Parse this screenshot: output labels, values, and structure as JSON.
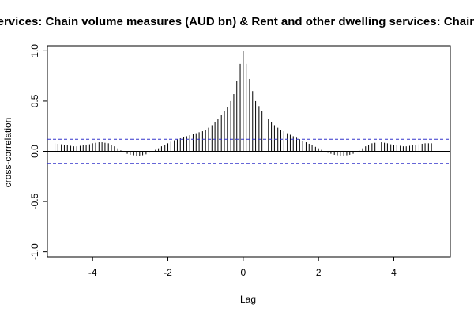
{
  "chart_data": {
    "type": "bar",
    "title": "ing services: Chain volume measures (AUD bn) & Rent and other dwelling services: Chain volu",
    "xlabel": "Lag",
    "ylabel": "cross-correlation",
    "xlim": [
      -5.2,
      5.5
    ],
    "ylim": [
      -1.05,
      1.05
    ],
    "x_ticks": [
      -4,
      -2,
      0,
      2,
      4
    ],
    "x_tick_labels": [
      "-4",
      "-2",
      "0",
      "2",
      "4"
    ],
    "y_ticks": [
      -1.0,
      -0.5,
      0.0,
      0.5,
      1.0
    ],
    "y_tick_labels": [
      "-1.0",
      "-0.5",
      "0.0",
      "0.5",
      "1.0"
    ],
    "confidence_bound": 0.12,
    "grid": false,
    "lag_step": 0.0833,
    "lags": [
      -5.0,
      -4.92,
      -4.83,
      -4.75,
      -4.67,
      -4.58,
      -4.5,
      -4.42,
      -4.33,
      -4.25,
      -4.17,
      -4.08,
      -4.0,
      -3.92,
      -3.83,
      -3.75,
      -3.67,
      -3.58,
      -3.5,
      -3.42,
      -3.33,
      -3.25,
      -3.17,
      -3.08,
      -3.0,
      -2.92,
      -2.83,
      -2.75,
      -2.67,
      -2.58,
      -2.5,
      -2.42,
      -2.33,
      -2.25,
      -2.17,
      -2.08,
      -2.0,
      -1.92,
      -1.83,
      -1.75,
      -1.67,
      -1.58,
      -1.5,
      -1.42,
      -1.33,
      -1.25,
      -1.17,
      -1.08,
      -1.0,
      -0.92,
      -0.83,
      -0.75,
      -0.67,
      -0.58,
      -0.5,
      -0.42,
      -0.33,
      -0.25,
      -0.17,
      -0.08,
      0.0,
      0.08,
      0.17,
      0.25,
      0.33,
      0.42,
      0.5,
      0.58,
      0.67,
      0.75,
      0.83,
      0.92,
      1.0,
      1.08,
      1.17,
      1.25,
      1.33,
      1.42,
      1.5,
      1.58,
      1.67,
      1.75,
      1.83,
      1.92,
      2.0,
      2.08,
      2.17,
      2.25,
      2.33,
      2.42,
      2.5,
      2.58,
      2.67,
      2.75,
      2.83,
      2.92,
      3.0,
      3.08,
      3.17,
      3.25,
      3.33,
      3.42,
      3.5,
      3.58,
      3.67,
      3.75,
      3.83,
      3.92,
      4.0,
      4.08,
      4.17,
      4.25,
      4.33,
      4.42,
      4.5,
      4.58,
      4.67,
      4.75,
      4.83,
      4.92,
      5.0
    ],
    "values": [
      0.08,
      0.075,
      0.07,
      0.065,
      0.06,
      0.055,
      0.05,
      0.05,
      0.055,
      0.06,
      0.065,
      0.07,
      0.08,
      0.085,
      0.09,
      0.09,
      0.085,
      0.08,
      0.065,
      0.05,
      0.03,
      0.01,
      -0.01,
      -0.025,
      -0.035,
      -0.04,
      -0.045,
      -0.045,
      -0.04,
      -0.03,
      -0.015,
      0.0,
      0.015,
      0.03,
      0.05,
      0.065,
      0.08,
      0.095,
      0.11,
      0.12,
      0.13,
      0.14,
      0.15,
      0.16,
      0.17,
      0.18,
      0.19,
      0.2,
      0.215,
      0.235,
      0.26,
      0.29,
      0.32,
      0.36,
      0.4,
      0.44,
      0.5,
      0.57,
      0.7,
      0.87,
      1.0,
      0.87,
      0.72,
      0.6,
      0.5,
      0.45,
      0.4,
      0.36,
      0.32,
      0.29,
      0.26,
      0.235,
      0.215,
      0.2,
      0.18,
      0.165,
      0.15,
      0.135,
      0.12,
      0.105,
      0.09,
      0.075,
      0.06,
      0.045,
      0.03,
      0.015,
      0.0,
      -0.015,
      -0.025,
      -0.035,
      -0.04,
      -0.045,
      -0.045,
      -0.04,
      -0.035,
      -0.025,
      -0.01,
      0.01,
      0.03,
      0.05,
      0.065,
      0.08,
      0.085,
      0.09,
      0.09,
      0.085,
      0.08,
      0.07,
      0.065,
      0.06,
      0.055,
      0.05,
      0.05,
      0.055,
      0.06,
      0.065,
      0.07,
      0.075,
      0.08,
      0.08,
      0.08
    ]
  },
  "colors": {
    "bars": "#000000",
    "bound_line": "#3333cc",
    "axes": "#000000"
  }
}
